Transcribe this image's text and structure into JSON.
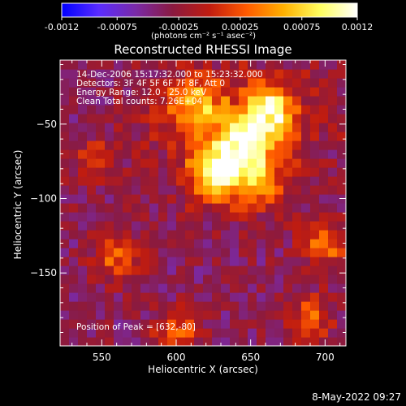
{
  "chart_data": {
    "type": "heatmap",
    "title": "Reconstructed RHESSI Image",
    "xlabel": "Heliocentric X (arcsec)",
    "ylabel": "Heliocentric Y (arcsec)",
    "xlim": [
      522,
      714
    ],
    "ylim": [
      -199,
      -7
    ],
    "x_ticks": [
      550,
      600,
      650,
      700
    ],
    "y_ticks": [
      -50,
      -100,
      -150
    ],
    "colorbar": {
      "range": [
        -0.0012,
        0.0012
      ],
      "ticks": [
        "-0.0012",
        "-0.00075",
        "-0.00025",
        "0.00025",
        "0.00075",
        "0.0012"
      ],
      "unit_label": "(photons cm⁻² s⁻¹ asec⁻²)",
      "colors": [
        "#0000ff",
        "#5a2cff",
        "#7a2aa8",
        "#8a1a40",
        "#c01c10",
        "#ff5a00",
        "#ffb000",
        "#ffff60",
        "#ffffff"
      ]
    },
    "annotations": [
      "14-Dec-2006 15:17:32.000 to 15:23:32.000",
      "Detectors: 3F 4F 5F 6F 7F 8F, Att 0",
      "Energy Range: 12.0 - 25.0 keV",
      "Clean    Total counts: 7.26E+04"
    ],
    "peak_label": "Position of Peak = [632,-80]",
    "peak": [
      632,
      -80
    ],
    "bright_regions": [
      {
        "x": 630,
        "y": -82,
        "value": 0.0012
      },
      {
        "x": 648,
        "y": -60,
        "value": 0.001
      },
      {
        "x": 665,
        "y": -40,
        "value": 0.0009
      },
      {
        "x": 610,
        "y": -35,
        "value": 0.0008
      },
      {
        "x": 700,
        "y": -130,
        "value": 0.0007
      },
      {
        "x": 560,
        "y": -140,
        "value": 0.0006
      },
      {
        "x": 600,
        "y": -190,
        "value": 0.0006
      },
      {
        "x": 690,
        "y": -180,
        "value": 0.0006
      },
      {
        "x": 660,
        "y": -90,
        "value": 0.0005
      },
      {
        "x": 545,
        "y": -75,
        "value": 0.0004
      }
    ]
  },
  "footer": {
    "timestamp": "8-May-2022 09:27"
  }
}
